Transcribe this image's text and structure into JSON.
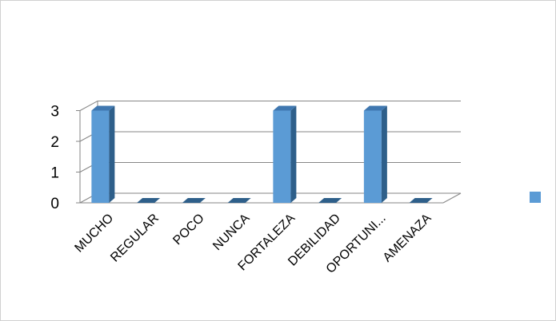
{
  "chart_data": {
    "type": "bar",
    "title": "",
    "xlabel": "",
    "ylabel": "",
    "categories": [
      "MUCHO",
      "REGULAR",
      "POCO",
      "NUNCA",
      "FORTALEZA",
      "DEBILIDAD",
      "OPORTUNI...",
      "AMENAZA"
    ],
    "series": [
      {
        "values": [
          3,
          0,
          0,
          0,
          3,
          0,
          3,
          0
        ]
      }
    ],
    "ylim": [
      0,
      3
    ],
    "yticks": [
      0,
      1,
      2,
      3
    ],
    "grid": true,
    "legend_position": "right",
    "three_d": true,
    "colors": {
      "bar_front": "#5b9bd5",
      "bar_side": "#2e5f8a",
      "bar_top": "#3f77b0",
      "grid": "#868686",
      "legend_swatch": "#5b9bd5"
    }
  }
}
